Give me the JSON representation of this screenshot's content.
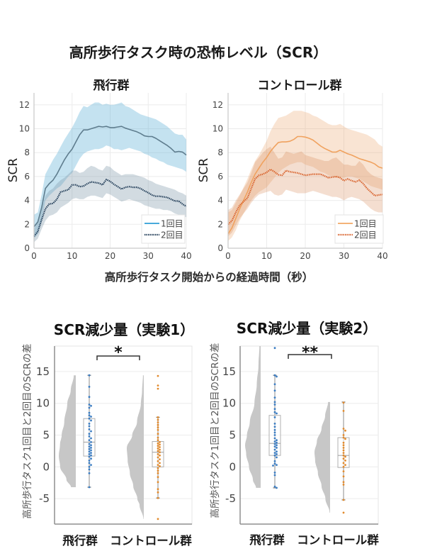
{
  "figure": {
    "title": "高所歩行タスク時の恐怖レベル（SCR）",
    "shared_xlabel": "高所歩行タスク開始からの経過時間（秒）"
  },
  "chart_data": [
    {
      "type": "line",
      "title": "飛行群",
      "xlabel": "高所歩行タスク開始からの経過時間（秒）",
      "ylabel": "SCR",
      "xlim": [
        0,
        40
      ],
      "ylim": [
        0,
        13
      ],
      "xticks": [
        0,
        10,
        20,
        30,
        40
      ],
      "yticks": [
        0,
        2,
        4,
        6,
        8,
        10,
        12
      ],
      "grid": true,
      "legend_position": "bottom-right",
      "x": [
        0,
        1,
        2,
        3,
        4,
        5,
        6,
        7,
        8,
        9,
        10,
        11,
        12,
        13,
        14,
        15,
        16,
        17,
        18,
        19,
        20,
        21,
        22,
        23,
        24,
        25,
        26,
        27,
        28,
        29,
        30,
        31,
        32,
        33,
        34,
        35,
        36,
        37,
        38,
        39,
        40
      ],
      "series": [
        {
          "name": "1回目",
          "style": "solid",
          "line_color": "#5f7d8e",
          "legend_color": "#2e9ed6",
          "band_color": "rgba(100,180,215,0.38)",
          "mean": [
            1.8,
            2.2,
            3.4,
            5.0,
            5.4,
            5.7,
            6.2,
            6.8,
            7.4,
            7.9,
            8.3,
            8.9,
            9.5,
            9.9,
            9.9,
            10.0,
            10.1,
            10.2,
            10.15,
            10.2,
            10.1,
            10.1,
            10.15,
            10.2,
            10.05,
            9.95,
            9.85,
            9.75,
            9.6,
            9.4,
            9.35,
            9.35,
            9.2,
            9.0,
            8.8,
            8.6,
            8.35,
            8.05,
            8.1,
            8.05,
            7.8
          ],
          "upper": [
            2.8,
            3.0,
            4.5,
            6.2,
            6.8,
            7.4,
            7.9,
            8.5,
            9.1,
            9.6,
            10.1,
            10.7,
            11.4,
            11.9,
            11.8,
            12.0,
            12.2,
            12.2,
            12.0,
            12.1,
            12.0,
            12.0,
            12.1,
            12.2,
            11.9,
            11.8,
            11.6,
            11.4,
            11.2,
            11.1,
            11.0,
            10.9,
            10.8,
            10.6,
            10.4,
            10.2,
            9.9,
            9.6,
            9.5,
            9.5,
            9.1
          ],
          "lower": [
            0.8,
            1.2,
            2.3,
            4.0,
            4.4,
            4.7,
            5.0,
            5.2,
            5.6,
            6.0,
            6.3,
            6.9,
            7.5,
            7.9,
            8.1,
            8.2,
            8.3,
            8.3,
            8.4,
            8.6,
            8.5,
            8.3,
            8.3,
            8.2,
            8.3,
            8.4,
            8.3,
            8.2,
            8.1,
            7.9,
            7.8,
            7.6,
            7.5,
            7.3,
            7.2,
            7.0,
            6.9,
            6.8,
            6.7,
            6.6,
            6.4
          ]
        },
        {
          "name": "2回目",
          "style": "dotted",
          "line_color": "#223d58",
          "legend_color": "#223d58",
          "band_color": "rgba(130,155,172,0.36)",
          "mean": [
            1.0,
            1.4,
            2.4,
            3.3,
            3.7,
            3.75,
            4.1,
            4.7,
            4.8,
            4.9,
            5.3,
            5.3,
            5.15,
            5.2,
            5.4,
            5.55,
            5.5,
            5.45,
            5.3,
            5.75,
            5.6,
            5.35,
            5.15,
            4.95,
            5.1,
            5.15,
            5.1,
            5.1,
            5.0,
            4.8,
            4.65,
            4.45,
            4.35,
            4.35,
            4.3,
            4.25,
            4.1,
            3.95,
            3.95,
            3.7,
            3.5
          ],
          "upper": [
            1.6,
            2.2,
            3.3,
            4.4,
            4.8,
            5.0,
            5.4,
            5.7,
            5.9,
            6.2,
            6.5,
            6.5,
            6.3,
            6.4,
            6.7,
            6.9,
            6.8,
            6.6,
            6.5,
            6.9,
            6.8,
            6.5,
            6.3,
            6.1,
            6.2,
            6.2,
            6.2,
            6.1,
            6.0,
            5.9,
            5.7,
            5.6,
            5.4,
            5.3,
            5.2,
            5.1,
            5.0,
            4.9,
            4.7,
            4.6,
            4.4
          ],
          "lower": [
            0.5,
            0.8,
            1.6,
            2.3,
            2.7,
            2.8,
            3.0,
            3.4,
            3.6,
            3.8,
            4.1,
            4.2,
            4.1,
            4.1,
            4.3,
            4.4,
            4.4,
            4.3,
            4.2,
            4.6,
            4.5,
            4.3,
            4.1,
            3.9,
            4.0,
            4.1,
            4.0,
            3.9,
            3.8,
            3.6,
            3.5,
            3.4,
            3.3,
            3.3,
            3.2,
            3.2,
            3.1,
            2.9,
            2.8,
            2.7,
            2.6
          ]
        }
      ]
    },
    {
      "type": "line",
      "title": "コントロール群",
      "xlabel": "高所歩行タスク開始からの経過時間（秒）",
      "ylabel": "SCR",
      "xlim": [
        0,
        40
      ],
      "ylim": [
        0,
        13
      ],
      "xticks": [
        0,
        10,
        20,
        30,
        40
      ],
      "yticks": [
        0,
        2,
        4,
        6,
        8,
        10,
        12
      ],
      "grid": true,
      "legend_position": "bottom-right",
      "x": [
        0,
        1,
        2,
        3,
        4,
        5,
        6,
        7,
        8,
        9,
        10,
        11,
        12,
        13,
        14,
        15,
        16,
        17,
        18,
        19,
        20,
        21,
        22,
        23,
        24,
        25,
        26,
        27,
        28,
        29,
        30,
        31,
        32,
        33,
        34,
        35,
        36,
        37,
        38,
        39,
        40
      ],
      "series": [
        {
          "name": "1回目",
          "style": "solid",
          "line_color": "#f0a25f",
          "legend_color": "#f2a865",
          "band_color": "rgba(236,165,110,0.30)",
          "mean": [
            1.2,
            1.7,
            2.5,
            3.3,
            4.0,
            4.7,
            5.5,
            6.2,
            6.7,
            7.2,
            7.6,
            8.1,
            8.5,
            8.85,
            8.9,
            8.9,
            8.95,
            9.1,
            9.35,
            9.35,
            9.3,
            9.2,
            9.05,
            8.8,
            8.55,
            8.35,
            8.2,
            8.05,
            8.05,
            8.2,
            8.05,
            7.9,
            7.8,
            7.65,
            7.5,
            7.4,
            7.3,
            7.2,
            7.05,
            6.8,
            6.7
          ],
          "upper": [
            3.0,
            3.2,
            3.8,
            4.4,
            5.1,
            5.8,
            6.6,
            7.3,
            7.8,
            8.4,
            9.0,
            9.8,
            10.4,
            10.9,
            11.0,
            11.1,
            11.3,
            11.5,
            11.5,
            11.5,
            11.4,
            11.3,
            11.1,
            11.0,
            10.8,
            10.6,
            10.4,
            10.3,
            10.3,
            10.4,
            10.2,
            10.0,
            9.9,
            9.8,
            9.7,
            9.6,
            9.5,
            9.3,
            9.1,
            8.7,
            8.5
          ],
          "lower": [
            0.6,
            0.9,
            1.5,
            2.3,
            2.9,
            3.5,
            4.0,
            4.4,
            4.7,
            4.9,
            5.1,
            5.5,
            5.9,
            6.3,
            6.6,
            6.8,
            7.0,
            7.1,
            7.2,
            7.2,
            7.0,
            6.9,
            6.8,
            6.6,
            6.4,
            6.3,
            6.1,
            6.0,
            5.9,
            5.9,
            5.9,
            6.0,
            6.0,
            5.9,
            5.8,
            5.6,
            5.4,
            5.2,
            5.1,
            5.0,
            4.9
          ]
        },
        {
          "name": "2回目",
          "style": "dotted",
          "line_color": "#d8612a",
          "legend_color": "#d8612a",
          "band_color": "rgba(215,135,85,0.28)",
          "mean": [
            2.0,
            2.3,
            3.0,
            3.6,
            3.9,
            4.2,
            5.0,
            5.8,
            6.1,
            6.2,
            6.35,
            6.6,
            6.4,
            6.15,
            6.1,
            6.5,
            6.4,
            6.35,
            6.3,
            6.2,
            6.1,
            6.15,
            6.2,
            6.2,
            6.2,
            6.05,
            5.9,
            5.95,
            6.0,
            5.9,
            5.65,
            5.8,
            5.65,
            5.55,
            5.7,
            5.4,
            5.0,
            4.7,
            4.4,
            4.45,
            4.5
          ],
          "upper": [
            3.2,
            3.4,
            4.0,
            4.5,
            5.0,
            5.5,
            6.3,
            7.2,
            7.6,
            8.0,
            8.3,
            8.5,
            8.0,
            7.5,
            7.6,
            8.1,
            8.0,
            7.9,
            8.0,
            8.1,
            7.8,
            7.7,
            7.6,
            7.5,
            7.4,
            7.3,
            7.3,
            7.5,
            7.6,
            7.3,
            7.0,
            7.0,
            6.9,
            6.9,
            7.3,
            7.0,
            6.5,
            6.2,
            6.0,
            5.9,
            5.8
          ],
          "lower": [
            1.0,
            1.3,
            1.9,
            2.5,
            2.9,
            3.3,
            3.8,
            4.2,
            4.5,
            4.6,
            4.7,
            4.8,
            4.5,
            4.4,
            4.5,
            4.9,
            4.8,
            4.7,
            4.6,
            4.6,
            4.6,
            4.7,
            4.8,
            4.7,
            4.6,
            4.5,
            4.4,
            4.3,
            4.3,
            4.2,
            4.0,
            4.2,
            4.3,
            4.2,
            4.1,
            3.9,
            3.6,
            3.3,
            3.1,
            3.0,
            3.0
          ]
        }
      ]
    },
    {
      "type": "raincloud",
      "title": "SCR減少量（実験1）",
      "xlabel": "",
      "ylabel": "高所歩行タスク1回目と2回目のSCRの差",
      "ylim": [
        -9,
        19
      ],
      "yticks": [
        -5,
        0,
        5,
        10,
        15
      ],
      "grid": true,
      "categories": [
        "飛行群",
        "コントロール群"
      ],
      "violin_color": "#c7c7c7",
      "groups": [
        {
          "name": "飛行群",
          "color": "#3a7cc2",
          "box": {
            "q1": 1.7,
            "median": 3.9,
            "q3": 7.6,
            "whisker_low": -3.2,
            "whisker_high": 14.4
          },
          "density": [
            [
              -3.2,
              0.28
            ],
            [
              -2,
              0.55
            ],
            [
              0,
              0.92
            ],
            [
              1.7,
              1.0
            ],
            [
              3.5,
              0.93
            ],
            [
              5,
              0.83
            ],
            [
              7,
              0.68
            ],
            [
              10,
              0.5
            ],
            [
              12,
              0.3
            ],
            [
              14.4,
              0.12
            ]
          ],
          "points": [
            14.4,
            12.6,
            11.0,
            9.8,
            9.6,
            9.3,
            8.5,
            8.1,
            7.9,
            7.6,
            7.3,
            6.8,
            6.4,
            5.9,
            5.6,
            5.2,
            4.8,
            4.5,
            4.2,
            3.9,
            3.6,
            3.4,
            3.2,
            3.0,
            2.8,
            2.6,
            2.4,
            2.2,
            2.0,
            1.8,
            1.6,
            1.3,
            1.0,
            0.6,
            0.3,
            0.0,
            -0.4,
            -1.0,
            -3.2
          ]
        },
        {
          "name": "コントロール群",
          "color": "#e28a2c",
          "box": {
            "q1": 0.0,
            "median": 2.3,
            "q3": 4.0,
            "whisker_low": -4.9,
            "whisker_high": 7.8
          },
          "density": [
            [
              -8.2,
              0.02
            ],
            [
              -6,
              0.25
            ],
            [
              -5,
              0.38
            ],
            [
              -3,
              0.62
            ],
            [
              -1,
              0.82
            ],
            [
              1,
              0.95
            ],
            [
              3,
              1.0
            ],
            [
              5,
              0.68
            ],
            [
              7,
              0.4
            ],
            [
              10,
              0.17
            ],
            [
              12,
              0.1
            ],
            [
              14.4,
              0.05
            ]
          ],
          "points": [
            14.3,
            12.8,
            12.3,
            7.8,
            7.4,
            7.0,
            6.6,
            6.2,
            5.8,
            5.2,
            4.6,
            4.2,
            3.9,
            3.7,
            3.5,
            3.3,
            3.1,
            2.9,
            2.7,
            2.5,
            2.3,
            2.0,
            1.8,
            1.5,
            1.2,
            0.9,
            0.6,
            0.3,
            0.1,
            -0.2,
            -0.6,
            -1.0,
            -1.6,
            -2.4,
            -3.5,
            -4.0,
            -4.9,
            -8.2
          ]
        }
      ],
      "significance": {
        "between": [
          "飛行群",
          "コントロール群"
        ],
        "label": "*"
      }
    },
    {
      "type": "raincloud",
      "title": "SCR減少量（実験2）",
      "xlabel": "",
      "ylabel": "高所歩行タスク1回目と2回目のSCRの差",
      "ylim": [
        -9,
        19
      ],
      "yticks": [
        -5,
        0,
        5,
        10,
        15
      ],
      "grid": true,
      "categories": [
        "飛行群",
        "コントロール群"
      ],
      "violin_color": "#c7c7c7",
      "groups": [
        {
          "name": "飛行群",
          "color": "#3a7cc2",
          "box": {
            "q1": 1.8,
            "median": 3.7,
            "q3": 8.1,
            "whisker_low": -3.3,
            "whisker_high": 14.4
          },
          "density": [
            [
              -3.3,
              0.3
            ],
            [
              -2,
              0.5
            ],
            [
              0,
              0.75
            ],
            [
              2,
              0.93
            ],
            [
              3.4,
              1.0
            ],
            [
              5,
              0.88
            ],
            [
              7,
              0.7
            ],
            [
              10,
              0.4
            ],
            [
              13,
              0.25
            ],
            [
              16,
              0.14
            ],
            [
              19,
              0.08
            ]
          ],
          "points": [
            18.7,
            14.4,
            14.2,
            13.0,
            12.0,
            10.9,
            10.2,
            9.8,
            9.1,
            8.6,
            8.4,
            7.8,
            6.8,
            6.3,
            5.8,
            5.4,
            5.0,
            4.5,
            4.2,
            4.0,
            3.8,
            3.6,
            3.4,
            3.2,
            3.0,
            2.7,
            2.4,
            2.2,
            2.0,
            1.8,
            1.5,
            0.9,
            0.5,
            0.3,
            0.2,
            -0.9,
            -1.3,
            -3.1,
            -3.3
          ]
        },
        {
          "name": "コントロール群",
          "color": "#e28a2c",
          "box": {
            "q1": -0.1,
            "median": 1.8,
            "q3": 4.6,
            "whisker_low": -5.2,
            "whisker_high": 10.2
          },
          "density": [
            [
              -7.2,
              0.03
            ],
            [
              -5,
              0.3
            ],
            [
              -3,
              0.55
            ],
            [
              -1,
              0.78
            ],
            [
              1,
              0.96
            ],
            [
              2.3,
              1.0
            ],
            [
              4,
              0.85
            ],
            [
              6,
              0.55
            ],
            [
              8,
              0.32
            ],
            [
              10.2,
              0.13
            ]
          ],
          "points": [
            10.1,
            8.8,
            6.0,
            5.7,
            5.0,
            4.6,
            4.4,
            3.8,
            3.4,
            3.0,
            2.6,
            2.2,
            1.8,
            1.6,
            1.3,
            1.0,
            0.6,
            0.3,
            0.0,
            -0.7,
            -1.5,
            -2.4,
            -2.8,
            -5.2,
            -7.2
          ]
        }
      ],
      "significance": {
        "between": [
          "飛行群",
          "コントロール群"
        ],
        "label": "**"
      }
    }
  ]
}
